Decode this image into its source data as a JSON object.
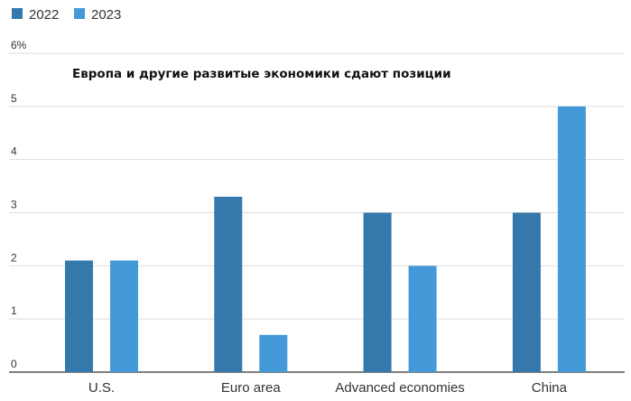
{
  "chart_data": {
    "type": "bar",
    "title": "Европа и другие развитые экономики сдают позиции",
    "categories": [
      "U.S.",
      "Euro area",
      "Advanced economies",
      "China"
    ],
    "series": [
      {
        "name": "2022",
        "values": [
          2.1,
          3.3,
          3.0,
          3.0
        ],
        "color": "#3578ab"
      },
      {
        "name": "2023",
        "values": [
          2.1,
          0.7,
          2.0,
          5.0
        ],
        "color": "#4499d9"
      }
    ],
    "ylim": [
      0,
      6
    ],
    "yticks": [
      "0",
      "1",
      "2",
      "3",
      "4",
      "5",
      "6%"
    ],
    "grid": true,
    "legend_position": "top-left",
    "xlabel": "",
    "ylabel": ""
  }
}
